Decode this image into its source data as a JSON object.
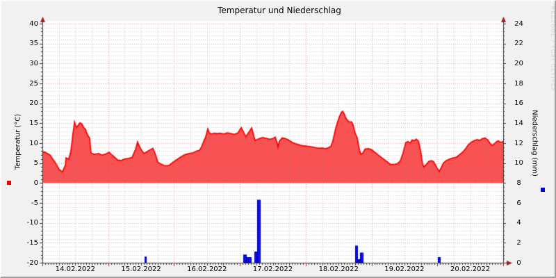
{
  "watermark": "RRDTOOL / TOBI OETIKER",
  "colors": {
    "frame_bg": "#f1f1f1",
    "plot_bg": "#ffffff",
    "temp_fill": "#fa5252",
    "temp_line": "#fc0000",
    "precip_bar": "#0d0df0",
    "precip_bar_edge": "#0000b8",
    "grid_major": "rgba(224,70,70,0.55)",
    "grid_minor": "rgba(130,130,130,0.40)",
    "axis": "#333333",
    "arrow": "#9e1f1f",
    "legend_temp": "#ee0000",
    "legend_precip": "#0000e0",
    "watermark_text": "#d2d2d2"
  },
  "chart_data": {
    "type": "area+bar",
    "title": "Temperatur und Niederschlag",
    "x_unit": "hours since 14.02.2022 00:00",
    "x_range_hours": [
      0,
      168
    ],
    "x_tick_labels": [
      "14.02.2022",
      "15.02.2022",
      "16.02.2022",
      "17.02.2022",
      "18.02.2022",
      "19.02.2022",
      "20.02.2022"
    ],
    "left_axis": {
      "label": "Temperatur (°C)",
      "lim": [
        -20,
        40
      ],
      "tick_step": 5,
      "tick_labels": [
        "40",
        "35",
        "30",
        "25",
        "20",
        "15",
        "10",
        "5",
        "0",
        "-5",
        "-10",
        "-15",
        "-20"
      ]
    },
    "right_axis": {
      "label": "Niederschlag (mm)",
      "lim": [
        0,
        24
      ],
      "tick_step": 2,
      "tick_labels": [
        "24",
        "22",
        "20",
        "18",
        "16",
        "14",
        "12",
        "10",
        "8",
        "6",
        "4",
        "2",
        "0"
      ]
    },
    "grid": {
      "h_minor_step_c": 1,
      "h_major_step_c": 5,
      "v_minor_step_h": 6,
      "v_major_step_h": 24
    },
    "legend_position": "axis-margins",
    "series": [
      {
        "name": "Temperatur",
        "type": "area",
        "axis": "left",
        "unit": "°C",
        "baseline": 0,
        "points": [
          [
            0,
            7.5
          ],
          [
            0.5,
            7.8
          ],
          [
            1,
            7.7
          ],
          [
            2.8,
            7.0
          ],
          [
            4.8,
            5.0
          ],
          [
            6.1,
            3.4
          ],
          [
            7.3,
            2.8
          ],
          [
            8.4,
            4.5
          ],
          [
            8.6,
            6.3
          ],
          [
            9.6,
            6.0
          ],
          [
            10.4,
            8.0
          ],
          [
            11.1,
            12.0
          ],
          [
            11.7,
            15.3
          ],
          [
            12.4,
            13.9
          ],
          [
            13.2,
            14.6
          ],
          [
            13.7,
            15.1
          ],
          [
            14.4,
            14.8
          ],
          [
            15,
            14.0
          ],
          [
            15.7,
            13.5
          ],
          [
            16.5,
            12.0
          ],
          [
            17.2,
            11.3
          ],
          [
            17.7,
            7.6
          ],
          [
            18.8,
            7.2
          ],
          [
            20.5,
            7.4
          ],
          [
            21.8,
            7.0
          ],
          [
            23.1,
            7.3
          ],
          [
            24.3,
            7.7
          ],
          [
            25.1,
            7.2
          ],
          [
            26.1,
            6.6
          ],
          [
            27.4,
            5.8
          ],
          [
            28.6,
            5.6
          ],
          [
            29.9,
            6.0
          ],
          [
            31.4,
            6.2
          ],
          [
            32.7,
            6.4
          ],
          [
            34,
            8.5
          ],
          [
            34.7,
            10.3
          ],
          [
            35.5,
            9.0
          ],
          [
            36.2,
            8.2
          ],
          [
            37,
            7.4
          ],
          [
            38,
            7.8
          ],
          [
            39,
            8.2
          ],
          [
            40.3,
            8.7
          ],
          [
            41.3,
            7.0
          ],
          [
            42.1,
            5.2
          ],
          [
            43.1,
            4.8
          ],
          [
            44.3,
            4.4
          ],
          [
            45.4,
            4.3
          ],
          [
            46.4,
            4.5
          ],
          [
            47.6,
            5.2
          ],
          [
            48.9,
            5.8
          ],
          [
            50.4,
            6.5
          ],
          [
            51.9,
            7.1
          ],
          [
            53.5,
            7.4
          ],
          [
            55,
            7.6
          ],
          [
            56.3,
            8.0
          ],
          [
            57.3,
            8.2
          ],
          [
            58,
            9.0
          ],
          [
            58.8,
            10.4
          ],
          [
            59.5,
            11.5
          ],
          [
            60.3,
            13.6
          ],
          [
            60.8,
            12.6
          ],
          [
            61.6,
            12.3
          ],
          [
            62.6,
            12.5
          ],
          [
            63.6,
            12.4
          ],
          [
            64.9,
            12.5
          ],
          [
            66.1,
            12.3
          ],
          [
            67.4,
            12.6
          ],
          [
            68.7,
            12.4
          ],
          [
            69.9,
            12.2
          ],
          [
            71.2,
            12.5
          ],
          [
            72.5,
            13.9
          ],
          [
            73.5,
            12.5
          ],
          [
            74.2,
            11.6
          ],
          [
            75.3,
            12.8
          ],
          [
            76.3,
            13.8
          ],
          [
            77,
            12.0
          ],
          [
            77.5,
            10.7
          ],
          [
            78.3,
            10.9
          ],
          [
            79.3,
            11.2
          ],
          [
            80.3,
            11.4
          ],
          [
            81.6,
            11.2
          ],
          [
            82.9,
            11.0
          ],
          [
            83.9,
            11.1
          ],
          [
            84.9,
            11.5
          ],
          [
            85.6,
            10.0
          ],
          [
            85.9,
            9.0
          ],
          [
            86.4,
            10.5
          ],
          [
            87.4,
            11.3
          ],
          [
            88.4,
            11.2
          ],
          [
            89.7,
            10.8
          ],
          [
            91,
            10.2
          ],
          [
            92.5,
            9.8
          ],
          [
            94,
            9.5
          ],
          [
            95.5,
            9.3
          ],
          [
            97,
            9.2
          ],
          [
            98.6,
            9.0
          ],
          [
            100.1,
            8.8
          ],
          [
            101.1,
            8.7
          ],
          [
            102.1,
            8.8
          ],
          [
            103.1,
            8.6
          ],
          [
            104.1,
            8.8
          ],
          [
            105.2,
            9.2
          ],
          [
            105.9,
            10.5
          ],
          [
            106.7,
            13.0
          ],
          [
            107.4,
            14.8
          ],
          [
            108.2,
            16.5
          ],
          [
            109,
            17.7
          ],
          [
            109.5,
            18.0
          ],
          [
            110,
            17.4
          ],
          [
            110.7,
            16.2
          ],
          [
            111.7,
            15.4
          ],
          [
            112.8,
            15.3
          ],
          [
            113.3,
            14.5
          ],
          [
            114,
            12.5
          ],
          [
            114.8,
            11.3
          ],
          [
            115.5,
            8.5
          ],
          [
            116.1,
            7.2
          ],
          [
            116.8,
            7.5
          ],
          [
            117.6,
            8.5
          ],
          [
            118.8,
            8.6
          ],
          [
            119.9,
            8.4
          ],
          [
            121.4,
            7.6
          ],
          [
            122.9,
            6.8
          ],
          [
            124.4,
            6.0
          ],
          [
            125.9,
            5.2
          ],
          [
            127,
            4.6
          ],
          [
            128.5,
            4.7
          ],
          [
            129.5,
            4.9
          ],
          [
            130.5,
            5.5
          ],
          [
            131.5,
            7.5
          ],
          [
            132.5,
            10.2
          ],
          [
            133.3,
            10.4
          ],
          [
            134.1,
            10.0
          ],
          [
            134.8,
            10.8
          ],
          [
            135.6,
            10.6
          ],
          [
            136.3,
            11.0
          ],
          [
            137.1,
            10.5
          ],
          [
            137.9,
            8.0
          ],
          [
            138.6,
            4.8
          ],
          [
            139.1,
            4.0
          ],
          [
            139.9,
            4.6
          ],
          [
            140.9,
            5.4
          ],
          [
            141.9,
            5.6
          ],
          [
            142.7,
            5.3
          ],
          [
            143.4,
            4.4
          ],
          [
            144.2,
            3.4
          ],
          [
            144.7,
            2.9
          ],
          [
            145.4,
            3.8
          ],
          [
            146.2,
            5.0
          ],
          [
            147.2,
            5.6
          ],
          [
            148.5,
            6.0
          ],
          [
            149.8,
            6.3
          ],
          [
            151,
            6.5
          ],
          [
            152.3,
            7.2
          ],
          [
            153.3,
            7.8
          ],
          [
            154.3,
            8.6
          ],
          [
            155.3,
            9.6
          ],
          [
            156.3,
            10.2
          ],
          [
            157.4,
            10.6
          ],
          [
            158.4,
            10.9
          ],
          [
            159.4,
            10.7
          ],
          [
            160.4,
            11.1
          ],
          [
            161.4,
            11.3
          ],
          [
            162.4,
            10.8
          ],
          [
            163.2,
            10.0
          ],
          [
            164,
            9.4
          ],
          [
            164.7,
            9.8
          ],
          [
            165.5,
            10.3
          ],
          [
            166.2,
            10.6
          ],
          [
            167,
            10.2
          ],
          [
            168,
            10.4
          ]
        ]
      },
      {
        "name": "Niederschlag",
        "type": "bar",
        "axis": "right",
        "unit": "mm",
        "bars": [
          {
            "start_h": 37.2,
            "end_h": 38.0,
            "mm": 0.6
          },
          {
            "start_h": 73.3,
            "end_h": 74.6,
            "mm": 0.8
          },
          {
            "start_h": 74.6,
            "end_h": 76.3,
            "mm": 0.55
          },
          {
            "start_h": 77.3,
            "end_h": 78.4,
            "mm": 1.1
          },
          {
            "start_h": 78.4,
            "end_h": 79.6,
            "mm": 6.3
          },
          {
            "start_h": 114.1,
            "end_h": 115.1,
            "mm": 1.7
          },
          {
            "start_h": 115.1,
            "end_h": 115.8,
            "mm": 0.35
          },
          {
            "start_h": 115.8,
            "end_h": 117.0,
            "mm": 1.0
          },
          {
            "start_h": 144.3,
            "end_h": 145.1,
            "mm": 0.55
          }
        ]
      }
    ]
  }
}
